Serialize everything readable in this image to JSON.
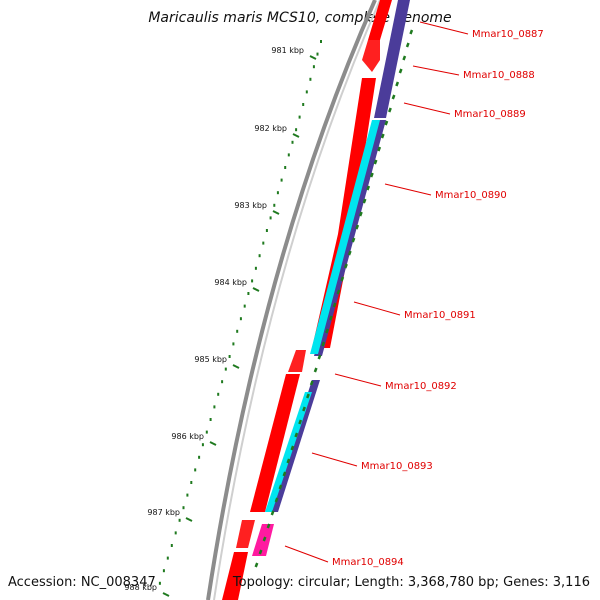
{
  "title": "Maricaulis maris MCS10, complete genome",
  "accession": "Accession: NC_008347",
  "topology": "Topology: circular; Length: 3,368,780 bp; Genes: 3,116",
  "colors": {
    "backbone": "#8c8c8c",
    "forward_cds": "#ff0000",
    "reverse_cds": "#4b3c9a",
    "feature_cyan": "#00e5ef",
    "feature_magenta": "#ff1aa0",
    "gc_skew": "#1f7a1f",
    "label": "#e00000"
  },
  "ticks": [
    "981 kbp",
    "982 kbp",
    "983 kbp",
    "984 kbp",
    "985 kbp",
    "986 kbp",
    "987 kbp",
    "988 kbp"
  ],
  "genes": [
    {
      "name": "Mmar10_0887",
      "color": "forward_cds"
    },
    {
      "name": "Mmar10_0888",
      "color": "reverse_cds"
    },
    {
      "name": "Mmar10_0889",
      "color": "forward_cds"
    },
    {
      "name": "Mmar10_0890",
      "color": "forward_cds"
    },
    {
      "name": "Mmar10_0891",
      "color": "forward_cds"
    },
    {
      "name": "Mmar10_0892",
      "color": "forward_cds"
    },
    {
      "name": "Mmar10_0893",
      "color": "forward_cds"
    },
    {
      "name": "Mmar10_0894",
      "color": "feature_magenta"
    }
  ]
}
